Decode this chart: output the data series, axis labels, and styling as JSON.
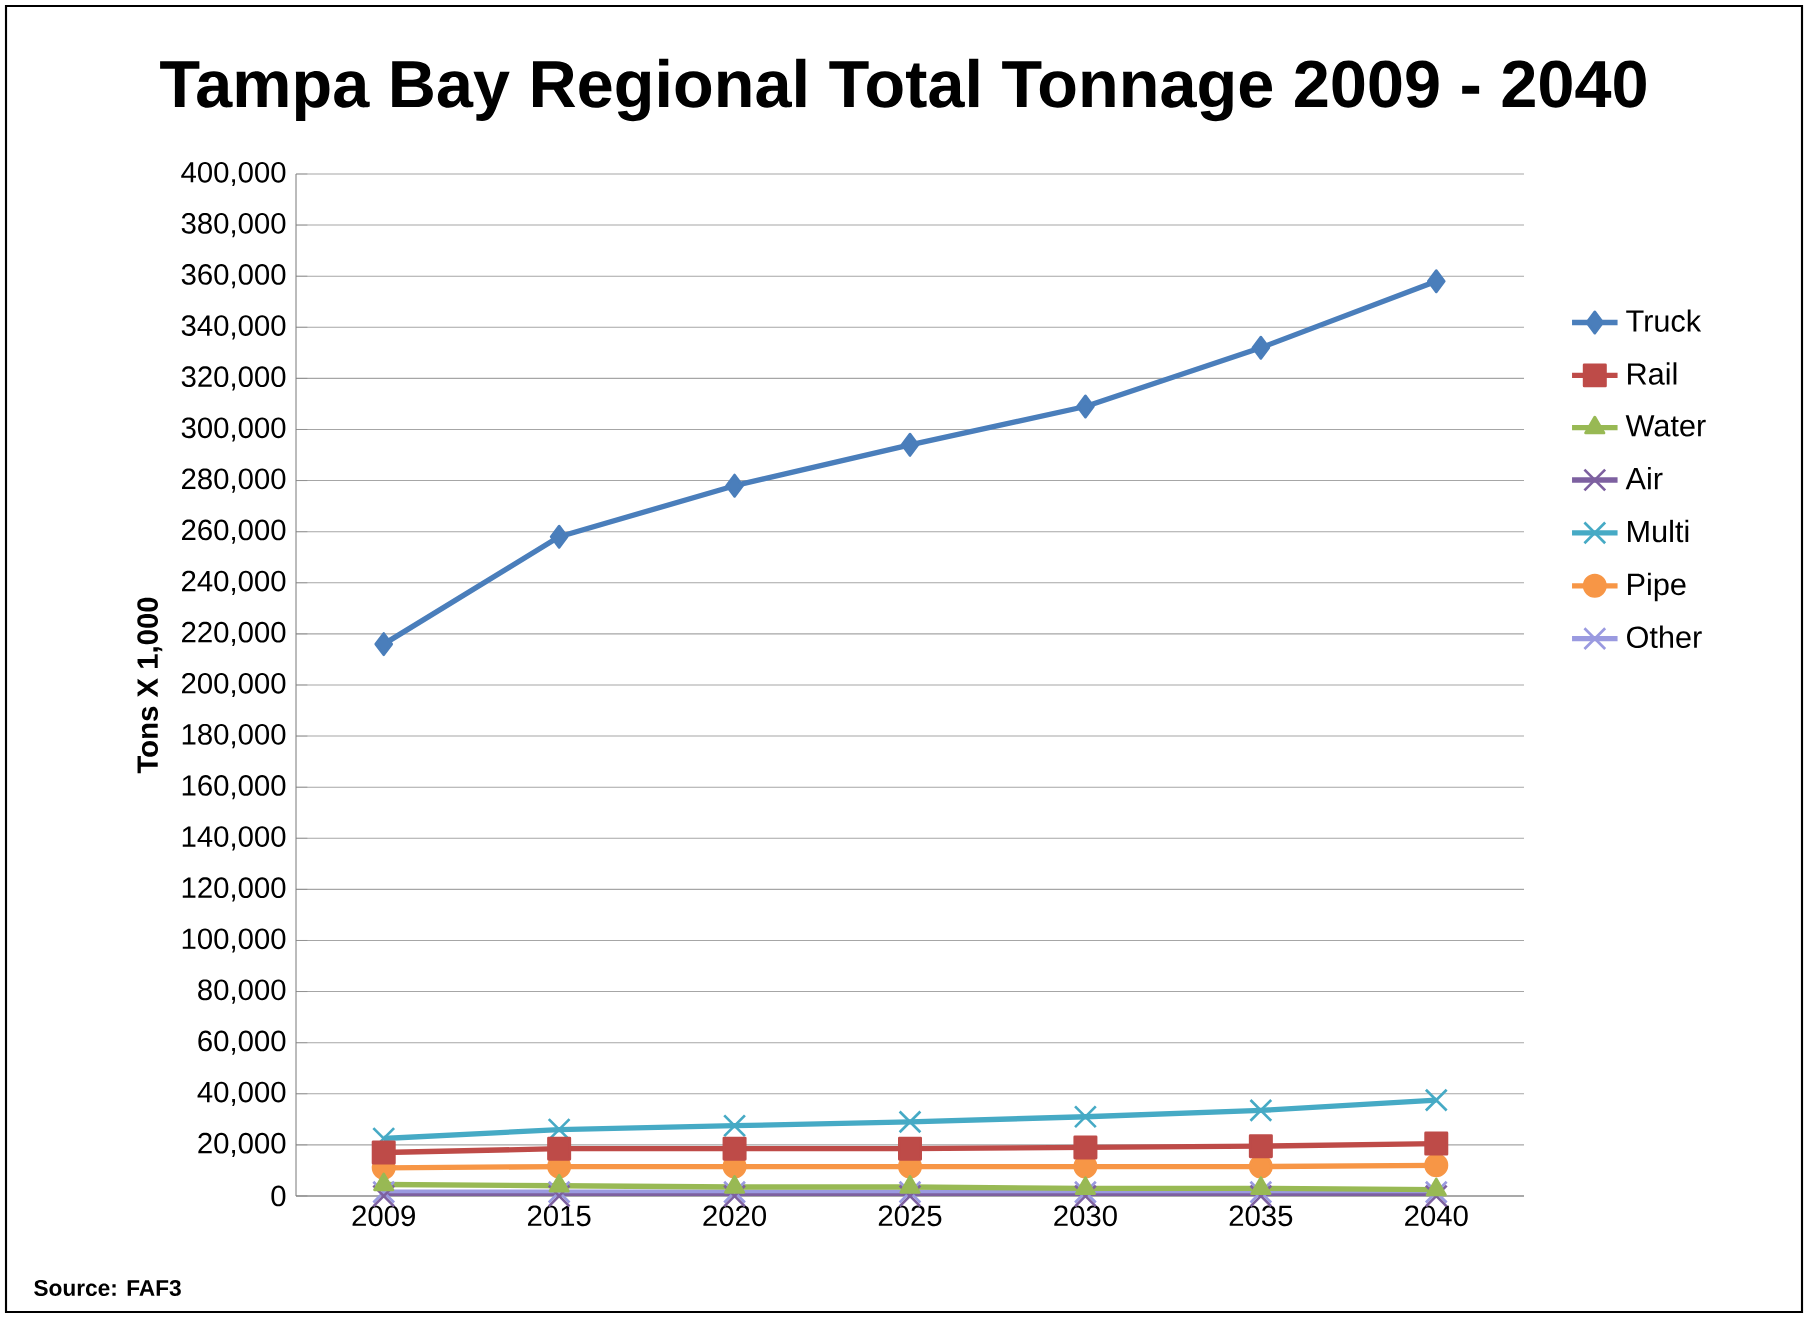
{
  "chart_data": {
    "type": "line",
    "title": "Tampa Bay Regional Total Tonnage 2009 - 2040",
    "ylabel": "Tons X 1,000",
    "categories": [
      "2009",
      "2015",
      "2020",
      "2025",
      "2030",
      "2035",
      "2040"
    ],
    "series": [
      {
        "name": "Truck",
        "color": "#4a7ebb",
        "marker": "diamond",
        "values": [
          216000,
          258000,
          278000,
          294000,
          309000,
          332000,
          358000
        ]
      },
      {
        "name": "Rail",
        "color": "#be4b48",
        "marker": "square",
        "values": [
          17000,
          18500,
          18500,
          18500,
          19000,
          19500,
          20500
        ]
      },
      {
        "name": "Water",
        "color": "#98b954",
        "marker": "triangle",
        "values": [
          4500,
          4000,
          3500,
          3500,
          3000,
          3000,
          2500
        ]
      },
      {
        "name": "Air",
        "color": "#7d60a0",
        "marker": "cross",
        "values": [
          0,
          0,
          0,
          0,
          0,
          0,
          0
        ]
      },
      {
        "name": "Multi",
        "color": "#46aac5",
        "marker": "cross",
        "values": [
          22500,
          26000,
          27500,
          29000,
          31000,
          33500,
          37500
        ]
      },
      {
        "name": "Pipe",
        "color": "#f79646",
        "marker": "circle",
        "values": [
          11000,
          11500,
          11500,
          11500,
          11500,
          11500,
          12000
        ]
      },
      {
        "name": "Other",
        "color": "#9a9ae0",
        "marker": "cross",
        "values": [
          1500,
          1500,
          1500,
          1500,
          1500,
          1500,
          1500
        ]
      }
    ],
    "ylim": [
      0,
      400000
    ],
    "yticks": [
      0,
      {
        "value": 20000,
        "label": "20,000"
      },
      {
        "value": 40000,
        "label": "40,000"
      },
      {
        "value": 60000,
        "label": "60,000"
      },
      {
        "value": 80000,
        "label": "80,000"
      },
      {
        "value": 100000,
        "label": "100,000"
      },
      {
        "value": 120000,
        "label": "120,000"
      },
      {
        "value": 140000,
        "label": "140,000"
      },
      {
        "value": 160000,
        "label": "160,000"
      },
      {
        "value": 180000,
        "label": "180,000"
      },
      {
        "value": 200000,
        "label": "200,000"
      },
      {
        "value": 220000,
        "label": "220,000"
      },
      {
        "value": 240000,
        "label": "240,000"
      },
      {
        "value": 260000,
        "label": "260,000"
      },
      {
        "value": 280000,
        "label": "280,000"
      },
      {
        "value": 300000,
        "label": "300,000"
      },
      {
        "value": 320000,
        "label": "320,000"
      },
      {
        "value": 340000,
        "label": "340,000"
      },
      {
        "value": 360000,
        "label": "360,000"
      },
      {
        "value": 380000,
        "label": "380,000"
      },
      {
        "value": 400000,
        "label": "400,000"
      }
    ],
    "grid": "y",
    "legend": "right",
    "annotations": [
      "Source:  FAF3"
    ]
  }
}
